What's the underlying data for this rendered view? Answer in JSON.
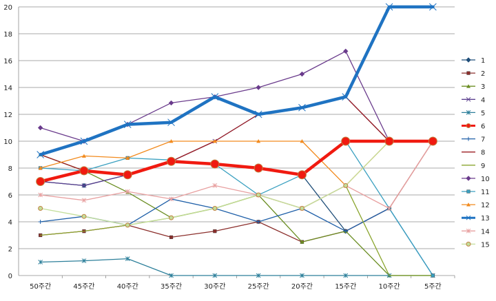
{
  "chart_data": {
    "type": "line",
    "title": "",
    "xlabel": "",
    "ylabel": "",
    "ylim": [
      0,
      20
    ],
    "y_ticks": [
      0,
      2,
      4,
      6,
      8,
      10,
      12,
      14,
      16,
      18,
      20
    ],
    "grid": "horizontal",
    "legend_position": "right",
    "categories": [
      "50주간",
      "45주간",
      "40주간",
      "35주간",
      "30주간",
      "25주간",
      "20주간",
      "15주간",
      "10주간",
      "5주간"
    ],
    "series": [
      {
        "name": "1",
        "color": "#1f4e79",
        "marker": "diamond",
        "values": [
          7,
          6.7,
          7.5,
          8.5,
          8.3,
          8,
          7.5,
          3.3,
          null,
          null
        ]
      },
      {
        "name": "2",
        "color": "#8b2e2b",
        "marker": "square",
        "values": [
          3,
          3.3,
          3.75,
          2.85,
          3.3,
          4,
          2.5,
          3.3,
          5,
          10
        ]
      },
      {
        "name": "3",
        "color": "#6b8e23",
        "marker": "triangle",
        "values": [
          9,
          7.8,
          6.2,
          4.3,
          5,
          6,
          2.5,
          3.3,
          0,
          0
        ]
      },
      {
        "name": "4",
        "color": "#5b3f8f",
        "marker": "x",
        "values": [
          7,
          6.7,
          7.5,
          8.5,
          10,
          12,
          12.5,
          13.3,
          10,
          10
        ]
      },
      {
        "name": "5",
        "color": "#2c7f9a",
        "marker": "star",
        "values": [
          1,
          1.1,
          1.25,
          0,
          0,
          0,
          0,
          0,
          0,
          0
        ]
      },
      {
        "name": "6",
        "color": "#f01a10",
        "marker": "circle",
        "values": [
          7,
          7.8,
          7.5,
          8.5,
          8.3,
          8,
          7.5,
          10,
          10,
          10
        ]
      },
      {
        "name": "7",
        "color": "#1e5fa8",
        "marker": "plus",
        "values": [
          4,
          4.4,
          3.75,
          5.7,
          5,
          4,
          5,
          3.3,
          5,
          0
        ]
      },
      {
        "name": "8",
        "color": "#9b1d22",
        "marker": "none",
        "values": [
          9,
          7.8,
          7.5,
          8.5,
          10,
          12,
          12.5,
          13.3,
          10,
          10
        ]
      },
      {
        "name": "9",
        "color": "#8aa52e",
        "marker": "none",
        "values": [
          3,
          3.3,
          3.75,
          4.3,
          5,
          6,
          5,
          6.7,
          0,
          0
        ]
      },
      {
        "name": "10",
        "color": "#6a3b8c",
        "marker": "diamond",
        "values": [
          11,
          10,
          11.25,
          12.85,
          13.3,
          14,
          15,
          16.7,
          10,
          10
        ]
      },
      {
        "name": "11",
        "color": "#3aa0c0",
        "marker": "square",
        "values": [
          8,
          7.8,
          8.75,
          8.6,
          8.3,
          6,
          7.5,
          10,
          5,
          0
        ]
      },
      {
        "name": "12",
        "color": "#f28a1d",
        "marker": "triangle",
        "values": [
          8,
          8.9,
          8.75,
          10,
          10,
          10,
          10,
          6.7,
          10,
          10
        ]
      },
      {
        "name": "13",
        "color": "#1f73c2",
        "marker": "x",
        "values": [
          9,
          10,
          11.25,
          11.4,
          13.3,
          12,
          12.5,
          13.3,
          20,
          20
        ]
      },
      {
        "name": "14",
        "color": "#e8a0a0",
        "marker": "star",
        "values": [
          6,
          5.6,
          6.25,
          5.7,
          6.7,
          6,
          5,
          6.7,
          5,
          10
        ]
      },
      {
        "name": "15",
        "color": "#c3de9a",
        "marker": "circle",
        "values": [
          5,
          4.4,
          3.75,
          4.3,
          5,
          6,
          5,
          6.7,
          10,
          10
        ]
      }
    ]
  }
}
